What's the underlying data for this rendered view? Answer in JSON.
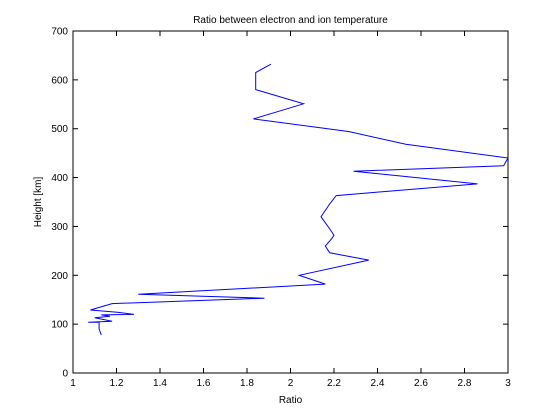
{
  "chart_data": {
    "type": "line",
    "title": "Ratio between electron and ion temperature",
    "xlabel": "Ratio",
    "ylabel": "Height [km]",
    "xlim": [
      1,
      3
    ],
    "ylim": [
      0,
      700
    ],
    "xticks": [
      1,
      1.2,
      1.4,
      1.6,
      1.8,
      2,
      2.2,
      2.4,
      2.6,
      2.8,
      3
    ],
    "xtick_labels": [
      "1",
      "1.2",
      "1.4",
      "1.6",
      "1.8",
      "2",
      "2.2",
      "2.4",
      "2.6",
      "2.8",
      "3"
    ],
    "yticks": [
      0,
      100,
      200,
      300,
      400,
      500,
      600,
      700
    ],
    "ytick_labels": [
      "0",
      "100",
      "200",
      "300",
      "400",
      "500",
      "600",
      "700"
    ],
    "grid": false,
    "series": [
      {
        "color": "#0000ff",
        "x": [
          1.13,
          1.12,
          1.12,
          1.07,
          1.18,
          1.1,
          1.17,
          1.13,
          1.28,
          1.21,
          1.08,
          1.18,
          1.88,
          1.3,
          2.16,
          2.14,
          2.04,
          2.36,
          2.18,
          2.16,
          2.19,
          2.2,
          2.18,
          2.14,
          2.18,
          2.21,
          2.86,
          2.29,
          2.98,
          3.0,
          2.53,
          2.27,
          1.83,
          2.06,
          1.84,
          1.84,
          1.91
        ],
        "y": [
          78,
          90,
          104,
          104,
          106,
          113,
          116,
          119,
          120,
          124,
          129,
          142,
          153,
          161,
          182,
          185,
          200,
          231,
          246,
          260,
          275,
          282,
          295,
          320,
          346,
          363,
          387,
          413,
          424,
          440,
          468,
          494,
          520,
          551,
          580,
          615,
          632
        ]
      }
    ]
  }
}
